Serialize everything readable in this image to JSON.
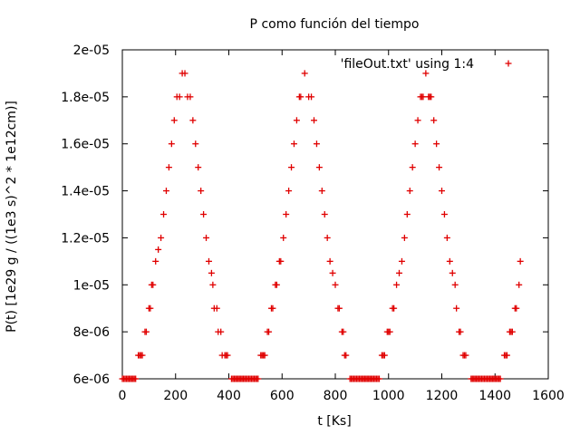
{
  "chart_data": {
    "type": "scatter",
    "title": "P como función del tiempo",
    "xlabel": "t [Ks]",
    "ylabel": "P(t) [1e29 g / ((1e3 s)^2 * 1e12cm)]",
    "xlim": [
      0,
      1600
    ],
    "ylim": [
      6e-06,
      2e-05
    ],
    "x_ticks": [
      0,
      200,
      400,
      600,
      800,
      1000,
      1200,
      1400,
      1600
    ],
    "x_tick_labels": [
      "0",
      "200",
      "400",
      "600",
      "800",
      "1000",
      "1200",
      "1400",
      "1600"
    ],
    "y_ticks": [
      6e-06,
      8e-06,
      1e-05,
      1.2e-05,
      1.4e-05,
      1.6e-05,
      1.8e-05,
      2e-05
    ],
    "y_tick_labels": [
      "6e-06",
      "8e-06",
      "1e-05",
      "1.2e-05",
      "1.4e-05",
      "1.6e-05",
      "1.8e-05",
      "2e-05"
    ],
    "grid": false,
    "legend_position": "top-right",
    "series": [
      {
        "name": "'fileOut.txt' using 1:4",
        "color": "#e00000",
        "marker": "plus",
        "x": [
          0,
          5,
          10,
          15,
          20,
          25,
          30,
          35,
          40,
          45,
          50,
          60,
          65,
          70,
          75,
          85,
          90,
          100,
          105,
          110,
          115,
          125,
          135,
          145,
          155,
          165,
          175,
          185,
          195,
          205,
          215,
          225,
          235,
          245,
          255,
          265,
          275,
          285,
          295,
          305,
          315,
          325,
          335,
          340,
          345,
          355,
          360,
          370,
          375,
          385,
          390,
          395,
          410,
          415,
          420,
          425,
          430,
          435,
          440,
          445,
          450,
          455,
          460,
          465,
          470,
          475,
          480,
          485,
          490,
          495,
          500,
          505,
          510,
          520,
          525,
          530,
          535,
          545,
          550,
          560,
          565,
          575,
          580,
          590,
          595,
          605,
          615,
          625,
          635,
          645,
          655,
          665,
          670,
          685,
          700,
          710,
          720,
          730,
          740,
          750,
          760,
          770,
          780,
          790,
          800,
          810,
          815,
          825,
          830,
          835,
          840,
          855,
          860,
          865,
          870,
          875,
          880,
          885,
          890,
          895,
          900,
          905,
          910,
          915,
          920,
          925,
          930,
          935,
          940,
          945,
          950,
          955,
          960,
          965,
          975,
          980,
          985,
          995,
          1000,
          1005,
          1015,
          1020,
          1030,
          1040,
          1050,
          1060,
          1070,
          1080,
          1090,
          1100,
          1110,
          1120,
          1125,
          1130,
          1140,
          1150,
          1155,
          1160,
          1170,
          1180,
          1190,
          1200,
          1210,
          1220,
          1230,
          1240,
          1250,
          1255,
          1265,
          1270,
          1280,
          1285,
          1290,
          1310,
          1315,
          1320,
          1325,
          1330,
          1335,
          1340,
          1345,
          1350,
          1355,
          1360,
          1365,
          1370,
          1375,
          1380,
          1385,
          1390,
          1395,
          1400,
          1405,
          1410,
          1415,
          1420,
          1435,
          1440,
          1445,
          1455,
          1460,
          1465,
          1475,
          1480,
          1490,
          1495
        ],
        "y": [
          6e-06,
          6e-06,
          6e-06,
          6e-06,
          6e-06,
          6e-06,
          6e-06,
          6e-06,
          6e-06,
          6e-06,
          6e-06,
          7e-06,
          7e-06,
          7e-06,
          7e-06,
          8e-06,
          8e-06,
          9e-06,
          9e-06,
          1e-05,
          1e-05,
          1.1e-05,
          1.15e-05,
          1.2e-05,
          1.3e-05,
          1.4e-05,
          1.5e-05,
          1.6e-05,
          1.7e-05,
          1.8e-05,
          1.8e-05,
          1.9e-05,
          1.9e-05,
          1.8e-05,
          1.8e-05,
          1.7e-05,
          1.6e-05,
          1.5e-05,
          1.4e-05,
          1.3e-05,
          1.2e-05,
          1.1e-05,
          1.05e-05,
          1e-05,
          9e-06,
          9e-06,
          8e-06,
          8e-06,
          7e-06,
          7e-06,
          7e-06,
          7e-06,
          6e-06,
          6e-06,
          6e-06,
          6e-06,
          6e-06,
          6e-06,
          6e-06,
          6e-06,
          6e-06,
          6e-06,
          6e-06,
          6e-06,
          6e-06,
          6e-06,
          6e-06,
          6e-06,
          6e-06,
          6e-06,
          6e-06,
          6e-06,
          6e-06,
          7e-06,
          7e-06,
          7e-06,
          7e-06,
          8e-06,
          8e-06,
          9e-06,
          9e-06,
          1e-05,
          1e-05,
          1.1e-05,
          1.1e-05,
          1.2e-05,
          1.3e-05,
          1.4e-05,
          1.5e-05,
          1.6e-05,
          1.7e-05,
          1.8e-05,
          1.8e-05,
          1.9e-05,
          1.8e-05,
          1.8e-05,
          1.7e-05,
          1.6e-05,
          1.5e-05,
          1.4e-05,
          1.3e-05,
          1.2e-05,
          1.1e-05,
          1.05e-05,
          1e-05,
          9e-06,
          9e-06,
          8e-06,
          8e-06,
          7e-06,
          7e-06,
          6e-06,
          6e-06,
          6e-06,
          6e-06,
          6e-06,
          6e-06,
          6e-06,
          6e-06,
          6e-06,
          6e-06,
          6e-06,
          6e-06,
          6e-06,
          6e-06,
          6e-06,
          6e-06,
          6e-06,
          6e-06,
          6e-06,
          6e-06,
          6e-06,
          6e-06,
          6e-06,
          7e-06,
          7e-06,
          7e-06,
          8e-06,
          8e-06,
          8e-06,
          9e-06,
          9e-06,
          1e-05,
          1.05e-05,
          1.1e-05,
          1.2e-05,
          1.3e-05,
          1.4e-05,
          1.5e-05,
          1.6e-05,
          1.7e-05,
          1.8e-05,
          1.8e-05,
          1.8e-05,
          1.9e-05,
          1.8e-05,
          1.8e-05,
          1.8e-05,
          1.7e-05,
          1.6e-05,
          1.5e-05,
          1.4e-05,
          1.3e-05,
          1.2e-05,
          1.1e-05,
          1.05e-05,
          1e-05,
          9e-06,
          8e-06,
          8e-06,
          7e-06,
          7e-06,
          7e-06,
          6e-06,
          6e-06,
          6e-06,
          6e-06,
          6e-06,
          6e-06,
          6e-06,
          6e-06,
          6e-06,
          6e-06,
          6e-06,
          6e-06,
          6e-06,
          6e-06,
          6e-06,
          6e-06,
          6e-06,
          6e-06,
          6e-06,
          6e-06,
          6e-06,
          6e-06,
          6e-06,
          7e-06,
          7e-06,
          7e-06,
          8e-06,
          8e-06,
          8e-06,
          9e-06,
          9e-06,
          1e-05,
          1.1e-05
        ]
      }
    ]
  }
}
